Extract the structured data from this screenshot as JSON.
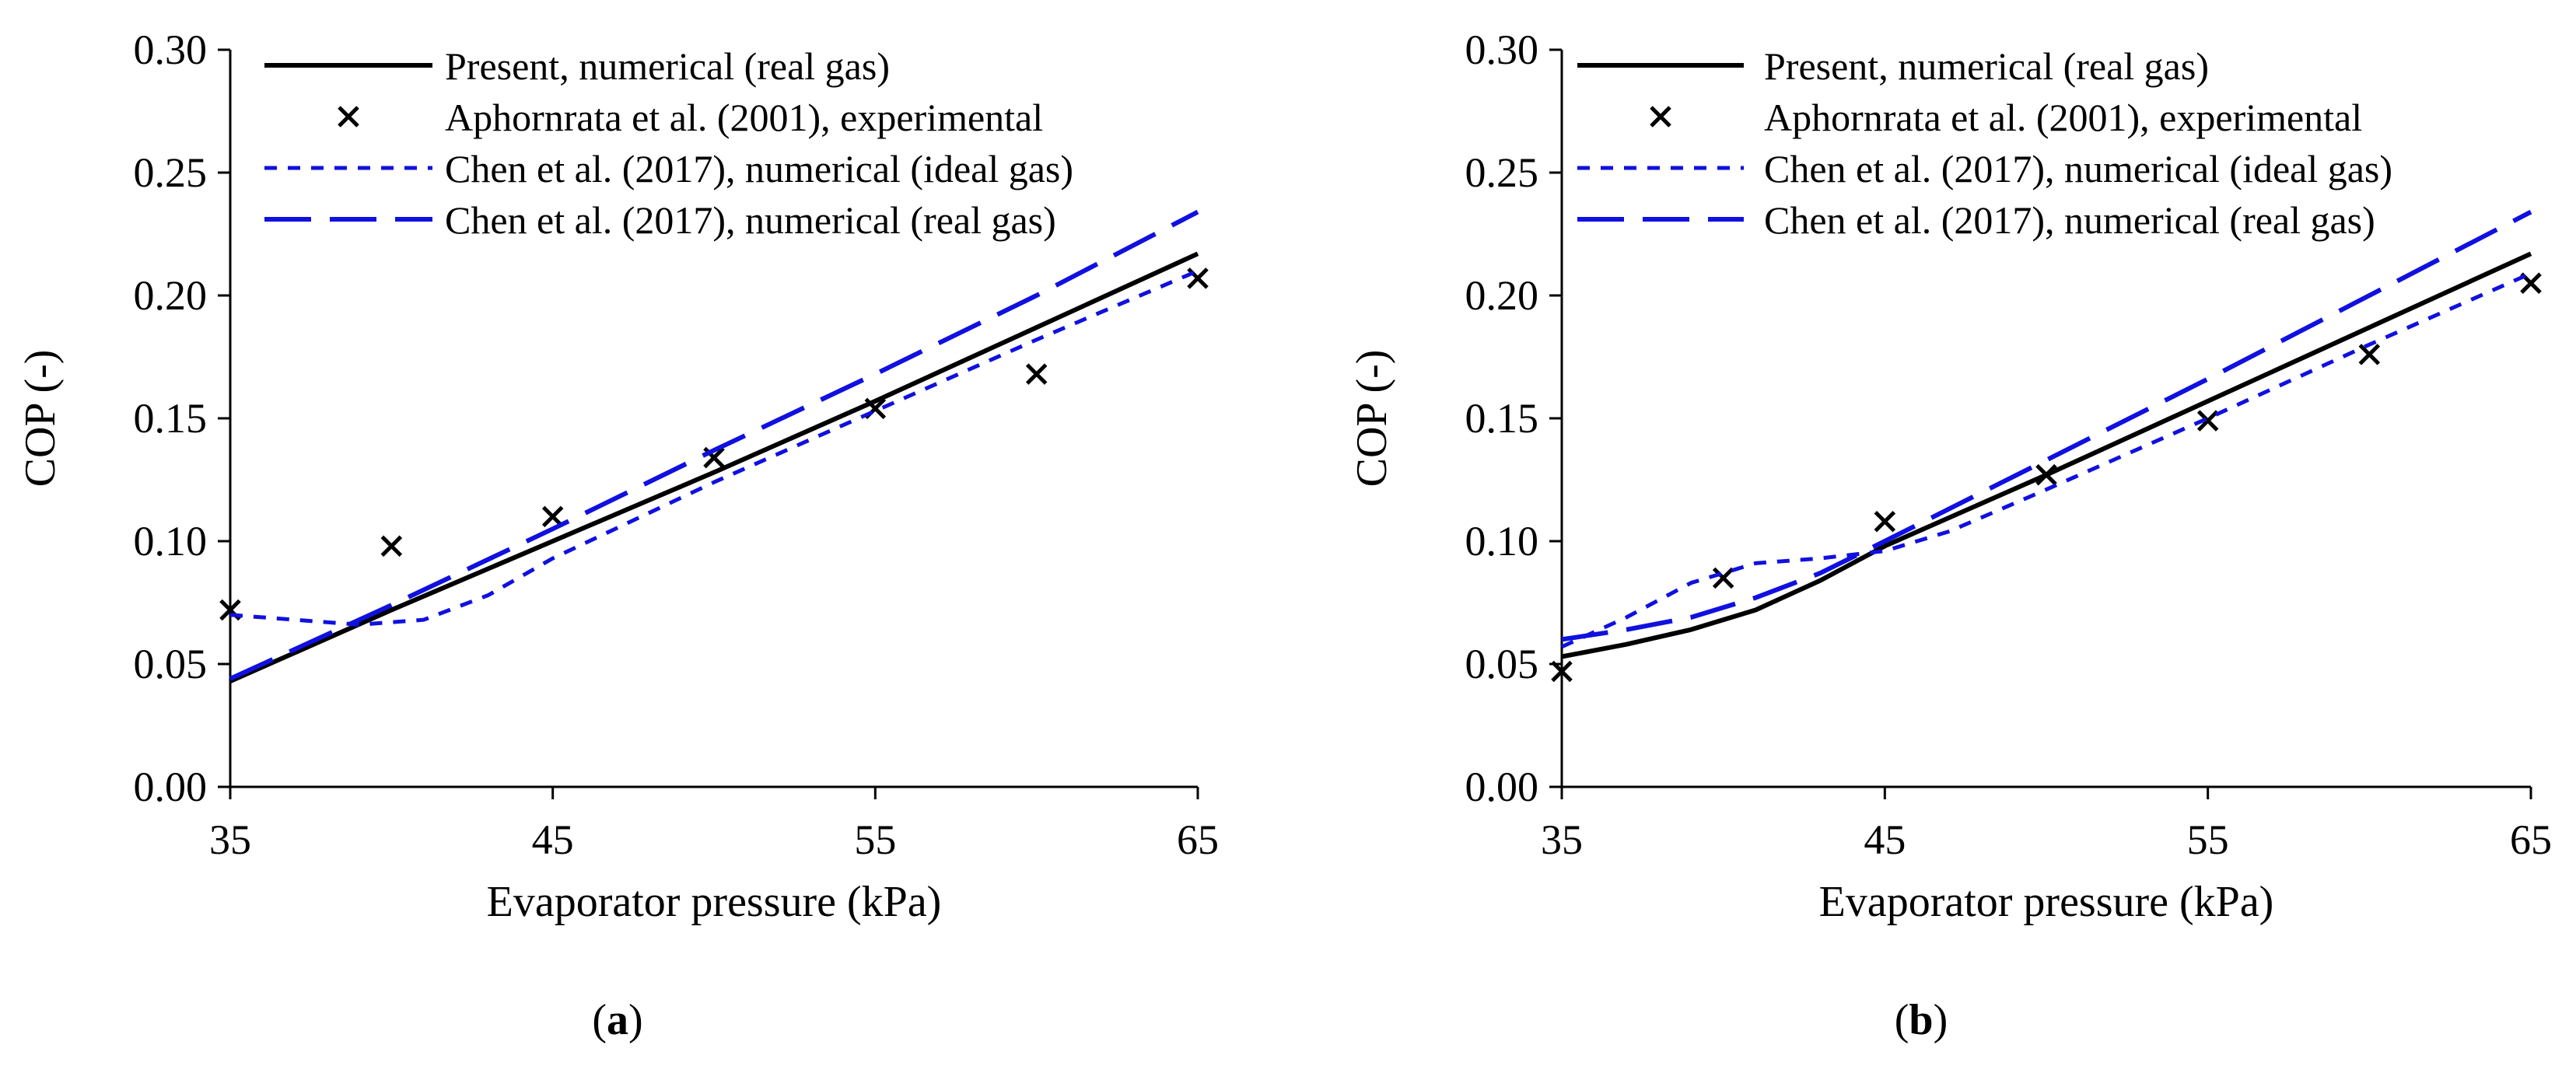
{
  "colors": {
    "present": "#000000",
    "chen": "#1010e0",
    "axis": "#000000"
  },
  "chart_data": [
    {
      "type": "line",
      "panel_label": "a",
      "xlabel": "Evaporator pressure (kPa)",
      "ylabel": "COP (-)",
      "xlim": [
        35,
        65
      ],
      "ylim": [
        0,
        0.3
      ],
      "xticks": [
        "35",
        "45",
        "55",
        "65"
      ],
      "yticks": [
        "0.00",
        "0.05",
        "0.10",
        "0.15",
        "0.20",
        "0.25",
        "0.30"
      ],
      "legend_position": "top-left",
      "series": [
        {
          "name": "Present, numerical (real gas)",
          "style": "solid",
          "x": [
            35,
            40,
            45,
            50,
            55,
            60,
            65
          ],
          "y": [
            0.043,
            0.072,
            0.1,
            0.128,
            0.157,
            0.187,
            0.217
          ]
        },
        {
          "name": "Aphornrata et al. (2001), experimental",
          "style": "marker-x",
          "x": [
            35,
            40,
            45,
            50,
            55,
            60,
            65
          ],
          "y": [
            0.072,
            0.098,
            0.11,
            0.134,
            0.154,
            0.168,
            0.207
          ]
        },
        {
          "name": "Chen et al. (2017), numerical (ideal gas)",
          "style": "short-dash",
          "x": [
            35,
            37,
            39,
            41,
            43,
            45,
            50,
            55,
            60,
            65
          ],
          "y": [
            0.07,
            0.068,
            0.066,
            0.068,
            0.078,
            0.093,
            0.124,
            0.153,
            0.182,
            0.21
          ]
        },
        {
          "name": "Chen et al. (2017), numerical (real gas)",
          "style": "long-dash",
          "x": [
            35,
            40,
            45,
            50,
            55,
            60,
            65
          ],
          "y": [
            0.044,
            0.074,
            0.105,
            0.137,
            0.168,
            0.2,
            0.234
          ]
        }
      ]
    },
    {
      "type": "line",
      "panel_label": "b",
      "xlabel": "Evaporator pressure (kPa)",
      "ylabel": "COP (-)",
      "xlim": [
        35,
        65
      ],
      "ylim": [
        0,
        0.3
      ],
      "xticks": [
        "35",
        "45",
        "55",
        "65"
      ],
      "yticks": [
        "0.00",
        "0.05",
        "0.10",
        "0.15",
        "0.20",
        "0.25",
        "0.30"
      ],
      "legend_position": "top-left",
      "series": [
        {
          "name": "Present, numerical (real gas)",
          "style": "solid",
          "x": [
            35,
            37,
            39,
            41,
            43,
            45,
            50,
            55,
            60,
            65
          ],
          "y": [
            0.053,
            0.058,
            0.064,
            0.072,
            0.084,
            0.098,
            0.127,
            0.157,
            0.187,
            0.217
          ]
        },
        {
          "name": "Aphornrata et al. (2001), experimental",
          "style": "marker-x",
          "x": [
            35,
            40,
            45,
            50,
            55,
            60,
            65
          ],
          "y": [
            0.047,
            0.085,
            0.108,
            0.127,
            0.149,
            0.176,
            0.205
          ]
        },
        {
          "name": "Chen et al. (2017), numerical (ideal gas)",
          "style": "short-dash",
          "x": [
            35,
            37,
            39,
            41,
            43,
            45,
            47,
            50,
            55,
            60,
            65
          ],
          "y": [
            0.057,
            0.069,
            0.083,
            0.091,
            0.093,
            0.096,
            0.104,
            0.121,
            0.15,
            0.18,
            0.209
          ]
        },
        {
          "name": "Chen et al. (2017), numerical (real gas)",
          "style": "long-dash",
          "x": [
            35,
            37,
            39,
            41,
            43,
            45,
            50,
            55,
            60,
            65
          ],
          "y": [
            0.06,
            0.064,
            0.069,
            0.077,
            0.087,
            0.1,
            0.133,
            0.166,
            0.2,
            0.234
          ]
        }
      ]
    }
  ]
}
